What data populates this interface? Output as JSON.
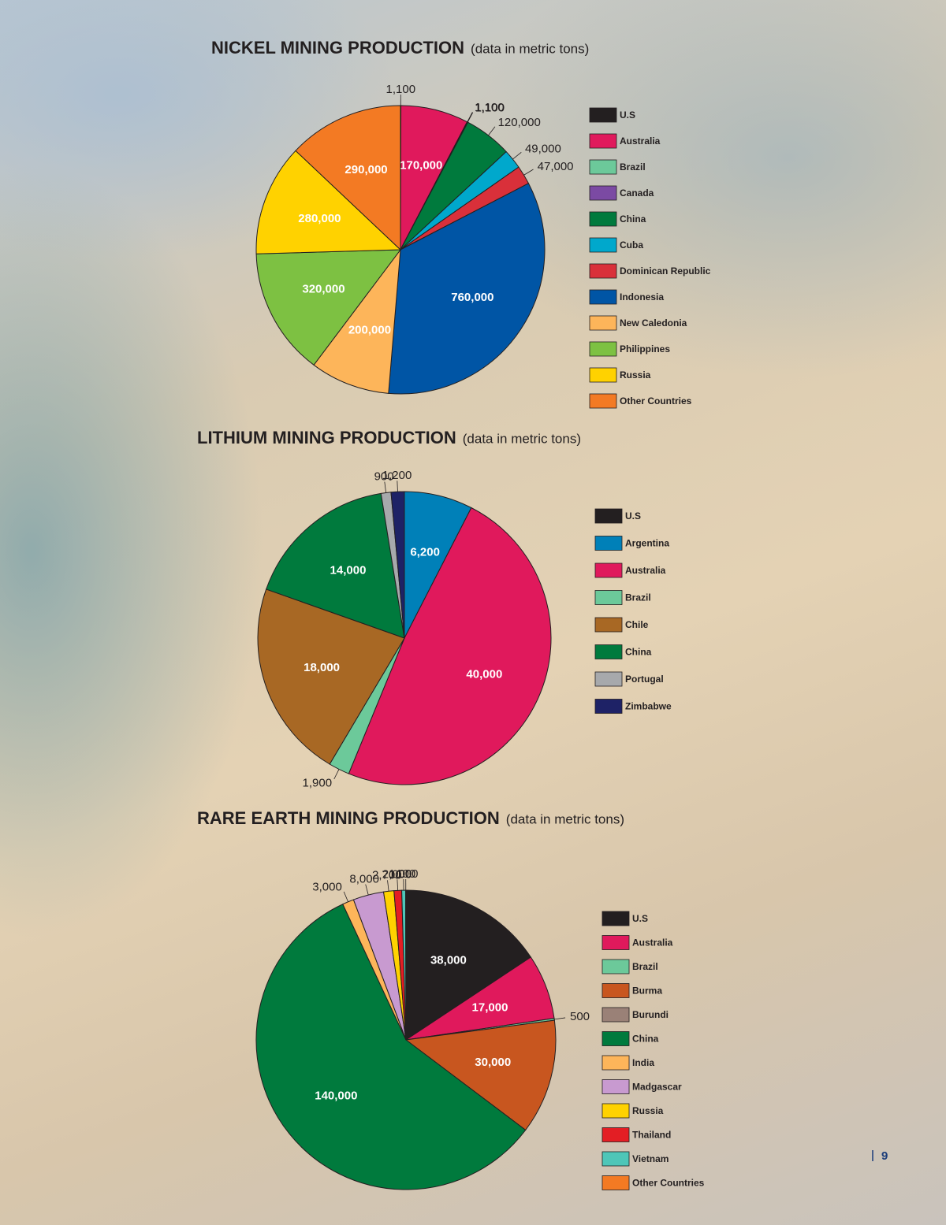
{
  "chart_data": [
    {
      "type": "pie",
      "title": "NICKEL MINING PRODUCTION",
      "subtitle": "(data in metric tons)",
      "categories": [
        "U.S",
        "Australia",
        "Brazil",
        "Canada",
        "China",
        "Cuba",
        "Dominican Republic",
        "Indonesia",
        "New Caledonia",
        "Philippines",
        "Russia",
        "Other Countries"
      ],
      "values": [
        1100,
        170000,
        1100,
        1100,
        120000,
        49000,
        47000,
        760000,
        200000,
        320000,
        280000,
        290000
      ],
      "value_labels": [
        "1,100",
        "170,000",
        "1,100",
        "1,100",
        "120,000",
        "49,000",
        "47,000",
        "760,000",
        "200,000",
        "320,000",
        "280,000",
        "290,000"
      ],
      "colors": [
        "#231f20",
        "#e0195c",
        "#6cc99a",
        "#7b4aa3",
        "#007a3d",
        "#00a8cc",
        "#d9303a",
        "#0055a5",
        "#fdb55a",
        "#7dc142",
        "#ffd200",
        "#f37a23"
      ]
    },
    {
      "type": "pie",
      "title": "LITHIUM MINING PRODUCTION",
      "subtitle": "(data in metric tons)",
      "categories": [
        "U.S",
        "Argentina",
        "Australia",
        "Brazil",
        "Chile",
        "China",
        "Portugal",
        "Zimbabwe"
      ],
      "values": [
        null,
        6200,
        40000,
        1900,
        18000,
        14000,
        900,
        1200
      ],
      "value_labels": [
        null,
        "6,200",
        "40,000",
        "1,900",
        "18,000",
        "14,000",
        "900",
        "1,200"
      ],
      "colors": [
        "#231f20",
        "#0080b8",
        "#e0195c",
        "#6cc99a",
        "#a86824",
        "#007a3d",
        "#a7a9ac",
        "#1e2266"
      ]
    },
    {
      "type": "pie",
      "title": "RARE EARTH MINING PRODUCTION",
      "subtitle": "(data in metric tons)",
      "categories": [
        "U.S",
        "Australia",
        "Brazil",
        "Burma",
        "Burundi",
        "China",
        "India",
        "Madgascar",
        "Russia",
        "Thailand",
        "Vietnam",
        "Other Countries"
      ],
      "values": [
        38000,
        17000,
        500,
        30000,
        null,
        140000,
        3000,
        8000,
        2700,
        2000,
        1000,
        100
      ],
      "value_labels": [
        "38,000",
        "17,000",
        "500",
        "30,000",
        null,
        "140,000",
        "3,000",
        "8,000",
        "2,700",
        "2,000",
        "1,000",
        "100"
      ],
      "colors": [
        "#231f20",
        "#e0195c",
        "#6cc99a",
        "#c8561f",
        "#9a8177",
        "#007a3d",
        "#fdb55a",
        "#c89ad0",
        "#ffd200",
        "#e31e24",
        "#4ec6b8",
        "#f37a23"
      ]
    }
  ],
  "page_number": "9"
}
